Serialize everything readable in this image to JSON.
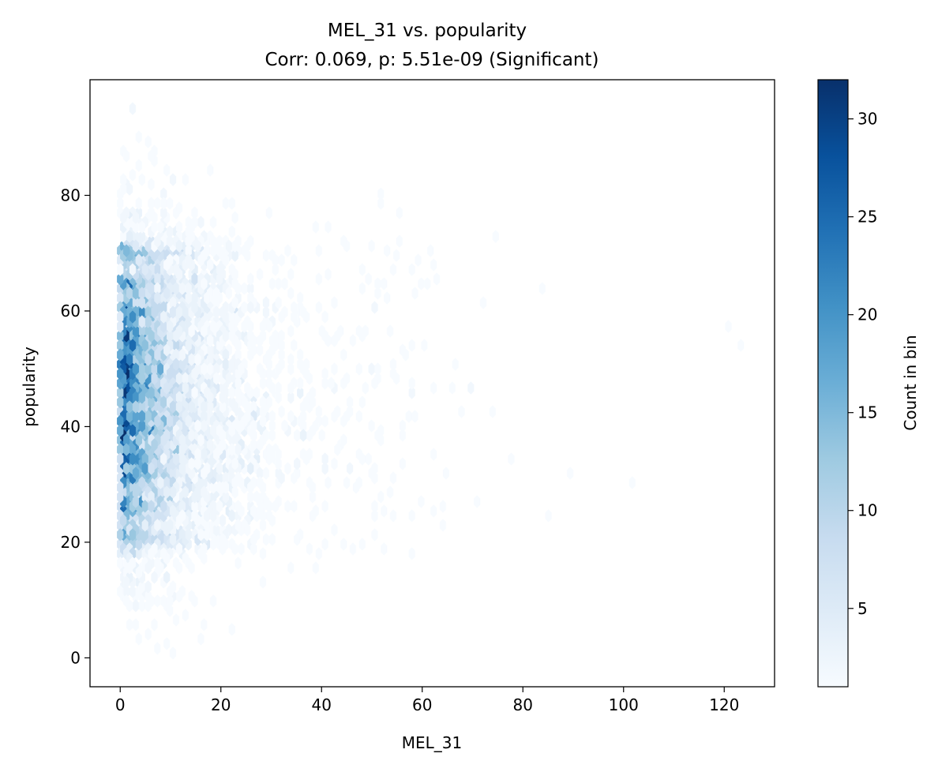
{
  "chart_data": {
    "type": "heatmap",
    "subtype": "hexbin",
    "title": "MEL_31 vs. popularity",
    "subtitle": "Corr: 0.069, p: 5.51e-09 (Significant)",
    "xlabel": "MEL_31",
    "ylabel": "popularity",
    "xlim": [
      -6,
      130
    ],
    "ylim": [
      -5,
      100
    ],
    "xticks": [
      "0",
      "20",
      "40",
      "60",
      "80",
      "100",
      "120"
    ],
    "xtick_values": [
      0,
      20,
      40,
      60,
      80,
      100,
      120
    ],
    "yticks": [
      "0",
      "20",
      "40",
      "60",
      "80"
    ],
    "ytick_values": [
      0,
      20,
      40,
      60,
      80
    ],
    "grid": false,
    "colormap": "Blues",
    "colorbar": {
      "label": "Count in bin",
      "min": 1,
      "max": 32,
      "ticks": [
        "5",
        "10",
        "15",
        "20",
        "25",
        "30"
      ],
      "tick_values": [
        5,
        10,
        15,
        20,
        25,
        30
      ]
    },
    "density_summary": {
      "x_range_of_points": [
        0,
        123
      ],
      "y_range_of_points": [
        0,
        95
      ],
      "peak_bins": [
        {
          "x": 4,
          "y": 46,
          "count": 32
        },
        {
          "x": 1,
          "y": 50,
          "count": 30
        },
        {
          "x": 4,
          "y": 50,
          "count": 28
        },
        {
          "x": 4,
          "y": 55,
          "count": 27
        },
        {
          "x": 2,
          "y": 35,
          "count": 25
        },
        {
          "x": 6,
          "y": 42,
          "count": 22
        },
        {
          "x": 8,
          "y": 50,
          "count": 20
        },
        {
          "x": 3,
          "y": 60,
          "count": 18
        },
        {
          "x": 1,
          "y": 26,
          "count": 14
        }
      ],
      "outlier_points": [
        {
          "x": 121,
          "y": 57
        },
        {
          "x": 123,
          "y": 54
        },
        {
          "x": 102,
          "y": 30
        },
        {
          "x": 90,
          "y": 32
        },
        {
          "x": 85,
          "y": 25
        },
        {
          "x": 84,
          "y": 64
        },
        {
          "x": 78,
          "y": 34
        },
        {
          "x": 72,
          "y": 61
        },
        {
          "x": 71,
          "y": 27
        },
        {
          "x": 70,
          "y": 47
        },
        {
          "x": 65,
          "y": 32
        },
        {
          "x": 64,
          "y": 23
        },
        {
          "x": 60,
          "y": 54
        },
        {
          "x": 58,
          "y": 47
        },
        {
          "x": 55,
          "y": 77
        },
        {
          "x": 52,
          "y": 79
        },
        {
          "x": 46,
          "y": 19
        },
        {
          "x": 53,
          "y": 19
        }
      ]
    }
  }
}
